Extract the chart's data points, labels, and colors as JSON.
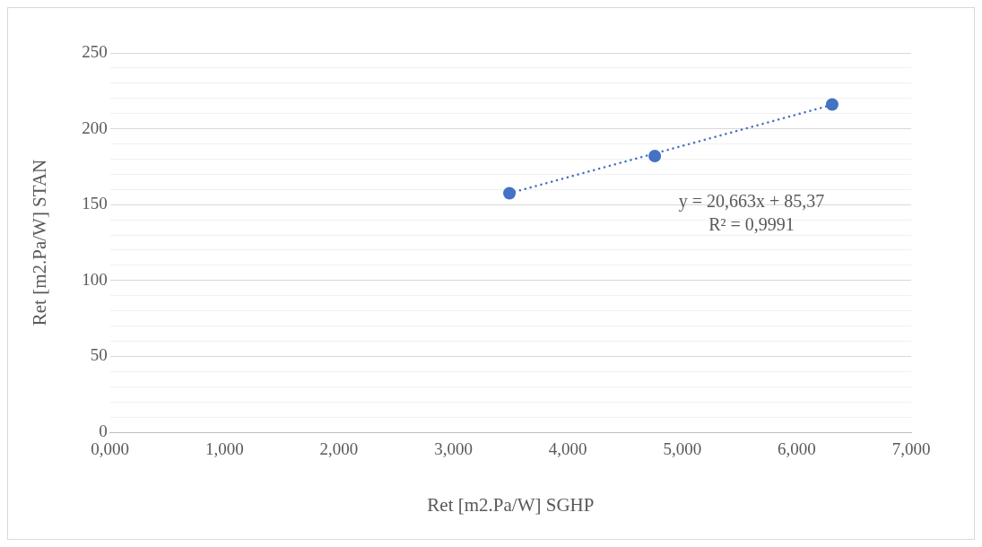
{
  "chart_data": {
    "type": "scatter",
    "xlabel": "Ret [m2.Pa/W] SGHP",
    "ylabel": "Ret [m2.Pa/W] STAN",
    "series": [
      {
        "color": "#4472c4",
        "marker": "circle",
        "x": [
          3.49,
          4.76,
          6.31
        ],
        "values": [
          157.5,
          182,
          216
        ]
      },
      {
        "type": "line",
        "color": "#4472c4",
        "line_style": "dotted",
        "marker": "none",
        "x": [
          3.49,
          6.31
        ],
        "values": [
          157.5,
          215.8
        ]
      }
    ],
    "xlim": [
      0,
      7
    ],
    "xticks": [
      {
        "value": 0,
        "label": "0,000"
      },
      {
        "value": 1,
        "label": "1,000"
      },
      {
        "value": 2,
        "label": "2,000"
      },
      {
        "value": 3,
        "label": "3,000"
      },
      {
        "value": 4,
        "label": "4,000"
      },
      {
        "value": 5,
        "label": "5,000"
      },
      {
        "value": 6,
        "label": "6,000"
      },
      {
        "value": 7,
        "label": "7,000"
      }
    ],
    "ylim": [
      0,
      250
    ],
    "yticks": [
      0,
      {
        "value": 10,
        "label": null
      },
      {
        "value": 20,
        "label": null
      },
      {
        "value": 30,
        "label": null
      },
      {
        "value": 40,
        "label": null
      },
      50,
      {
        "value": 60,
        "label": null
      },
      {
        "value": 70,
        "label": null
      },
      {
        "value": 80,
        "label": null
      },
      {
        "value": 90,
        "label": null
      },
      100,
      {
        "value": 110,
        "label": null
      },
      {
        "value": 120,
        "label": null
      },
      {
        "value": 130,
        "label": null
      },
      {
        "value": 140,
        "label": null
      },
      150,
      {
        "value": 160,
        "label": null
      },
      {
        "value": 170,
        "label": null
      },
      {
        "value": 180,
        "label": null
      },
      {
        "value": 190,
        "label": null
      },
      200,
      {
        "value": 210,
        "label": null
      },
      {
        "value": 220,
        "label": null
      },
      {
        "value": 230,
        "label": null
      },
      {
        "value": 240,
        "label": null
      },
      250
    ],
    "grid": "y",
    "legend": false,
    "annotations": [
      "y = 20,663x + 85,37",
      "R² = 0,9991"
    ]
  }
}
